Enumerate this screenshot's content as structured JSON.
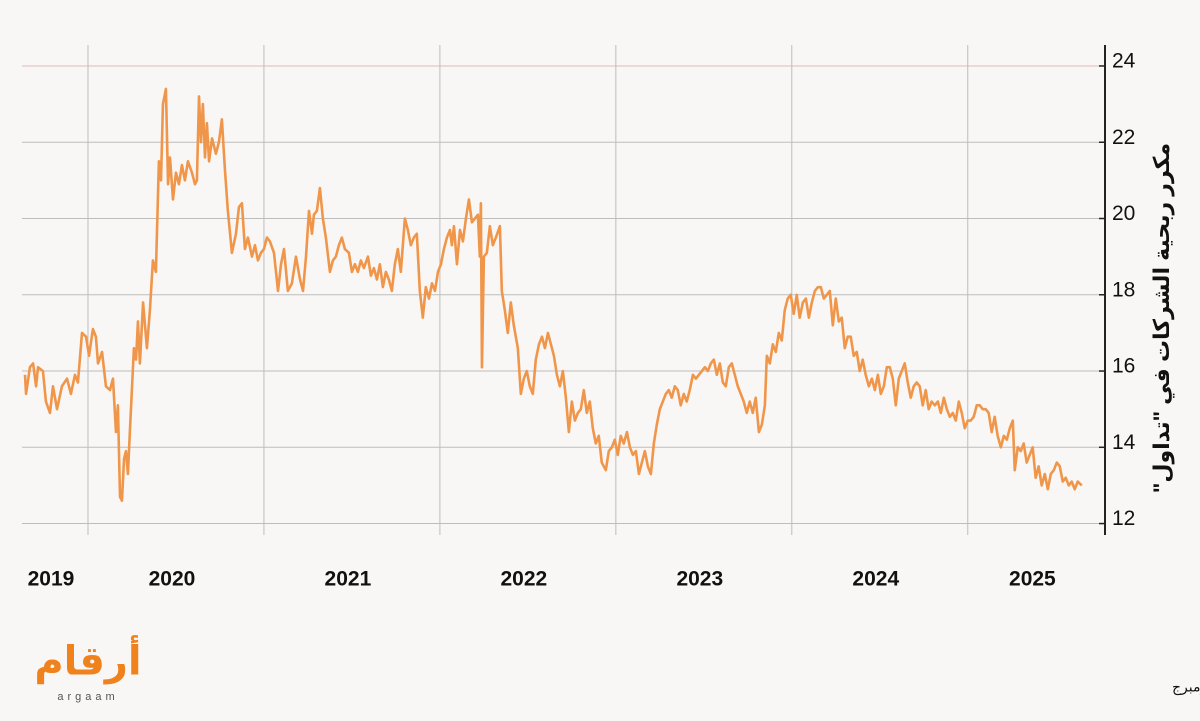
{
  "chart_data": {
    "type": "line",
    "y_label": "مكرر ربحية الشركات في \"تداول\"",
    "source": "المصدر: أرقام/ بلومبرج",
    "logo": {
      "text": "أرقام",
      "subtext": "argaam"
    },
    "xlim": [
      2019.625,
      2025.78
    ],
    "xticks": [
      2019,
      2020,
      2021,
      2022,
      2023,
      2024,
      2025
    ],
    "ylim": [
      11.7,
      24.55
    ],
    "yticks": [
      12,
      14,
      16,
      18,
      20,
      22,
      24
    ],
    "grid": true,
    "x": [
      2019.642,
      2019.648,
      2019.67,
      2019.688,
      2019.705,
      2019.716,
      2019.744,
      2019.761,
      2019.784,
      2019.801,
      2019.824,
      2019.852,
      2019.881,
      2019.903,
      2019.926,
      2019.943,
      2019.966,
      2019.989,
      2020.006,
      2020.028,
      2020.045,
      2020.057,
      2020.08,
      2020.102,
      2020.125,
      2020.142,
      2020.159,
      2020.17,
      2020.182,
      2020.193,
      2020.205,
      2020.216,
      2020.227,
      2020.239,
      2020.261,
      2020.273,
      2020.284,
      2020.295,
      2020.313,
      2020.335,
      2020.352,
      2020.369,
      2020.386,
      2020.403,
      2020.415,
      2020.426,
      2020.443,
      2020.455,
      2020.466,
      2020.483,
      2020.5,
      2020.517,
      2020.534,
      2020.551,
      2020.568,
      2020.591,
      2020.608,
      2020.619,
      2020.631,
      2020.642,
      2020.653,
      2020.665,
      2020.676,
      2020.688,
      2020.705,
      2020.727,
      2020.744,
      2020.761,
      2020.778,
      2020.795,
      2020.818,
      2020.841,
      2020.858,
      2020.875,
      2020.892,
      2020.909,
      2020.932,
      2020.949,
      2020.966,
      2020.983,
      2021.0,
      2021.017,
      2021.034,
      2021.057,
      2021.08,
      2021.097,
      2021.114,
      2021.136,
      2021.159,
      2021.182,
      2021.205,
      2021.222,
      2021.239,
      2021.256,
      2021.273,
      2021.284,
      2021.301,
      2021.318,
      2021.335,
      2021.352,
      2021.375,
      2021.392,
      2021.409,
      2021.426,
      2021.443,
      2021.46,
      2021.483,
      2021.5,
      2021.517,
      2021.534,
      2021.551,
      2021.568,
      2021.591,
      2021.608,
      2021.625,
      2021.642,
      2021.659,
      2021.676,
      2021.693,
      2021.71,
      2021.727,
      2021.744,
      2021.761,
      2021.778,
      2021.801,
      2021.818,
      2021.835,
      2021.852,
      2021.869,
      2021.886,
      2021.903,
      2021.92,
      2021.938,
      2021.955,
      2021.972,
      2021.989,
      2022.006,
      2022.023,
      2022.04,
      2022.057,
      2022.068,
      2022.08,
      2022.097,
      2022.114,
      2022.131,
      2022.148,
      2022.165,
      2022.182,
      2022.199,
      2022.216,
      2022.227,
      2022.233,
      2022.239,
      2022.25,
      2022.267,
      2022.284,
      2022.301,
      2022.318,
      2022.341,
      2022.352,
      2022.369,
      2022.386,
      2022.403,
      2022.42,
      2022.443,
      2022.46,
      2022.477,
      2022.494,
      2022.511,
      2022.528,
      2022.545,
      2022.563,
      2022.58,
      2022.597,
      2022.614,
      2022.631,
      2022.648,
      2022.665,
      2022.682,
      2022.699,
      2022.716,
      2022.733,
      2022.75,
      2022.767,
      2022.784,
      2022.801,
      2022.818,
      2022.835,
      2022.852,
      2022.869,
      2022.886,
      2022.903,
      2022.92,
      2022.943,
      2022.96,
      2022.977,
      2022.994,
      2023.011,
      2023.028,
      2023.045,
      2023.063,
      2023.08,
      2023.097,
      2023.114,
      2023.131,
      2023.148,
      2023.165,
      2023.182,
      2023.199,
      2023.216,
      2023.233,
      2023.25,
      2023.267,
      2023.284,
      2023.301,
      2023.318,
      2023.335,
      2023.352,
      2023.369,
      2023.386,
      2023.403,
      2023.42,
      2023.438,
      2023.455,
      2023.472,
      2023.489,
      2023.506,
      2023.523,
      2023.54,
      2023.557,
      2023.574,
      2023.591,
      2023.608,
      2023.625,
      2023.642,
      2023.659,
      2023.676,
      2023.693,
      2023.71,
      2023.727,
      2023.744,
      2023.761,
      2023.778,
      2023.795,
      2023.813,
      2023.83,
      2023.847,
      2023.858,
      2023.875,
      2023.892,
      2023.909,
      2023.926,
      2023.943,
      2023.96,
      2023.977,
      2023.994,
      2024.011,
      2024.028,
      2024.045,
      2024.063,
      2024.08,
      2024.097,
      2024.114,
      2024.131,
      2024.148,
      2024.165,
      2024.182,
      2024.199,
      2024.216,
      2024.233,
      2024.25,
      2024.267,
      2024.284,
      2024.301,
      2024.318,
      2024.335,
      2024.352,
      2024.369,
      2024.386,
      2024.403,
      2024.42,
      2024.438,
      2024.455,
      2024.472,
      2024.489,
      2024.506,
      2024.523,
      2024.54,
      2024.557,
      2024.574,
      2024.591,
      2024.608,
      2024.625,
      2024.642,
      2024.659,
      2024.676,
      2024.693,
      2024.71,
      2024.727,
      2024.744,
      2024.761,
      2024.778,
      2024.795,
      2024.813,
      2024.83,
      2024.847,
      2024.864,
      2024.881,
      2024.898,
      2024.915,
      2024.932,
      2024.949,
      2024.966,
      2024.983,
      2025.0,
      2025.017,
      2025.034,
      2025.051,
      2025.068,
      2025.085,
      2025.102,
      2025.119,
      2025.136,
      2025.153,
      2025.17,
      2025.188,
      2025.205,
      2025.222,
      2025.239,
      2025.256,
      2025.267,
      2025.284,
      2025.301,
      2025.318,
      2025.335,
      2025.352,
      2025.369,
      2025.386,
      2025.403,
      2025.42,
      2025.438,
      2025.455,
      2025.472,
      2025.489,
      2025.506,
      2025.523,
      2025.54,
      2025.557,
      2025.574,
      2025.591,
      2025.608,
      2025.625,
      2025.648
    ],
    "series": [
      {
        "color": "#f0964b",
        "values": [
          15.9,
          15.4,
          16.1,
          16.2,
          15.6,
          16.1,
          16.0,
          15.2,
          14.9,
          15.6,
          15.0,
          15.6,
          15.8,
          15.4,
          15.9,
          15.7,
          17.0,
          16.9,
          16.4,
          17.1,
          16.9,
          16.2,
          16.5,
          15.6,
          15.5,
          15.8,
          14.4,
          15.1,
          12.7,
          12.6,
          13.7,
          13.9,
          13.3,
          14.5,
          16.6,
          16.3,
          17.3,
          16.2,
          17.8,
          16.6,
          17.6,
          18.9,
          18.6,
          21.5,
          21.0,
          23.0,
          23.4,
          20.9,
          21.6,
          20.5,
          21.2,
          20.9,
          21.4,
          21.0,
          21.5,
          21.2,
          20.9,
          21.0,
          23.2,
          22.0,
          23.0,
          21.6,
          22.5,
          21.5,
          22.1,
          21.7,
          22.0,
          22.6,
          21.3,
          20.2,
          19.1,
          19.6,
          20.3,
          20.4,
          19.2,
          19.5,
          19.0,
          19.3,
          18.9,
          19.1,
          19.2,
          19.5,
          19.4,
          19.1,
          18.1,
          18.8,
          19.2,
          18.1,
          18.3,
          19.0,
          18.4,
          18.1,
          19.0,
          20.2,
          19.6,
          20.1,
          20.2,
          20.8,
          20.0,
          19.5,
          18.6,
          18.9,
          19.0,
          19.3,
          19.5,
          19.2,
          19.1,
          18.6,
          18.8,
          18.6,
          18.9,
          18.7,
          19.0,
          18.5,
          18.7,
          18.4,
          18.8,
          18.2,
          18.6,
          18.4,
          18.1,
          18.8,
          19.2,
          18.6,
          20.0,
          19.7,
          19.3,
          19.5,
          19.6,
          18.1,
          17.4,
          18.2,
          17.9,
          18.3,
          18.1,
          18.6,
          18.8,
          19.2,
          19.5,
          19.7,
          19.3,
          19.8,
          18.8,
          19.7,
          19.4,
          20.0,
          20.5,
          19.9,
          20.0,
          20.1,
          19.0,
          20.4,
          16.1,
          19.0,
          19.1,
          19.8,
          19.3,
          19.5,
          19.8,
          18.1,
          17.6,
          17.0,
          17.8,
          17.2,
          16.6,
          15.4,
          15.8,
          16.0,
          15.6,
          15.4,
          16.3,
          16.7,
          16.9,
          16.6,
          17.0,
          16.7,
          16.4,
          15.9,
          15.6,
          16.0,
          15.3,
          14.4,
          15.2,
          14.7,
          14.9,
          15.0,
          15.5,
          14.9,
          15.2,
          14.5,
          14.1,
          14.3,
          13.6,
          13.4,
          13.9,
          14.0,
          14.2,
          13.8,
          14.3,
          14.1,
          14.4,
          14.0,
          13.8,
          13.9,
          13.3,
          13.6,
          13.9,
          13.5,
          13.3,
          14.1,
          14.6,
          15.0,
          15.2,
          15.4,
          15.5,
          15.3,
          15.6,
          15.5,
          15.1,
          15.4,
          15.2,
          15.5,
          15.9,
          15.8,
          15.9,
          16.0,
          16.1,
          16.0,
          16.2,
          16.3,
          15.9,
          16.2,
          15.7,
          15.6,
          16.1,
          16.2,
          15.9,
          15.6,
          15.4,
          15.2,
          14.9,
          15.2,
          14.9,
          15.3,
          14.4,
          14.6,
          15.1,
          16.4,
          16.2,
          16.7,
          16.5,
          17.0,
          16.8,
          17.6,
          17.9,
          18.0,
          17.5,
          18.0,
          17.4,
          17.8,
          17.9,
          17.4,
          17.8,
          18.1,
          18.2,
          18.2,
          17.9,
          18.0,
          18.1,
          17.2,
          17.9,
          17.3,
          17.4,
          16.6,
          16.9,
          16.9,
          16.4,
          16.5,
          16.0,
          16.3,
          15.9,
          15.6,
          15.8,
          15.5,
          15.9,
          15.4,
          15.6,
          16.1,
          16.1,
          15.8,
          15.1,
          15.8,
          16.0,
          16.2,
          15.7,
          15.3,
          15.6,
          15.7,
          15.6,
          15.1,
          15.5,
          15.0,
          15.2,
          15.1,
          15.2,
          14.9,
          15.3,
          15.0,
          14.8,
          14.9,
          14.7,
          15.2,
          14.9,
          14.5,
          14.7,
          14.7,
          14.8,
          15.1,
          15.1,
          15.0,
          15.0,
          14.9,
          14.4,
          14.8,
          14.3,
          14.0,
          14.3,
          14.2,
          14.5,
          14.7,
          13.4,
          14.0,
          13.9,
          14.1,
          13.6,
          13.8,
          14.0,
          13.2,
          13.5,
          13.0,
          13.3,
          12.9,
          13.3,
          13.4,
          13.6,
          13.5,
          13.1,
          13.2,
          13.0,
          13.1,
          12.9,
          13.1,
          13.0
        ]
      }
    ]
  }
}
